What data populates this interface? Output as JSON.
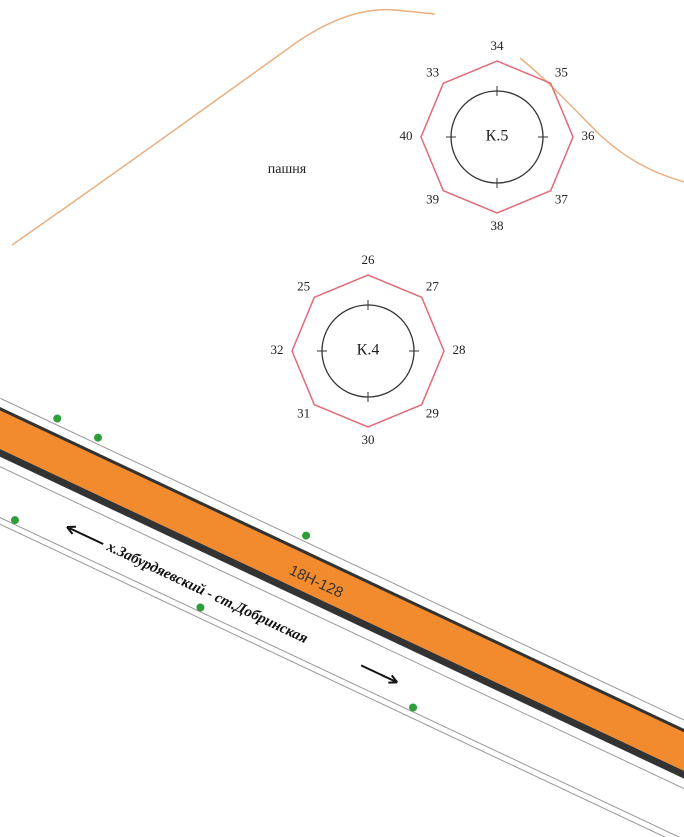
{
  "field": {
    "label": "пашня"
  },
  "wells": [
    {
      "label": "К.5",
      "points": [
        "33",
        "34",
        "35",
        "36",
        "37",
        "38",
        "39",
        "40"
      ]
    },
    {
      "label": "К.4",
      "points": [
        "25",
        "26",
        "27",
        "28",
        "29",
        "30",
        "31",
        "32"
      ]
    }
  ],
  "road": {
    "code": "18Н-128",
    "direction": "х.Забурдяевский - ст.Добринская"
  }
}
